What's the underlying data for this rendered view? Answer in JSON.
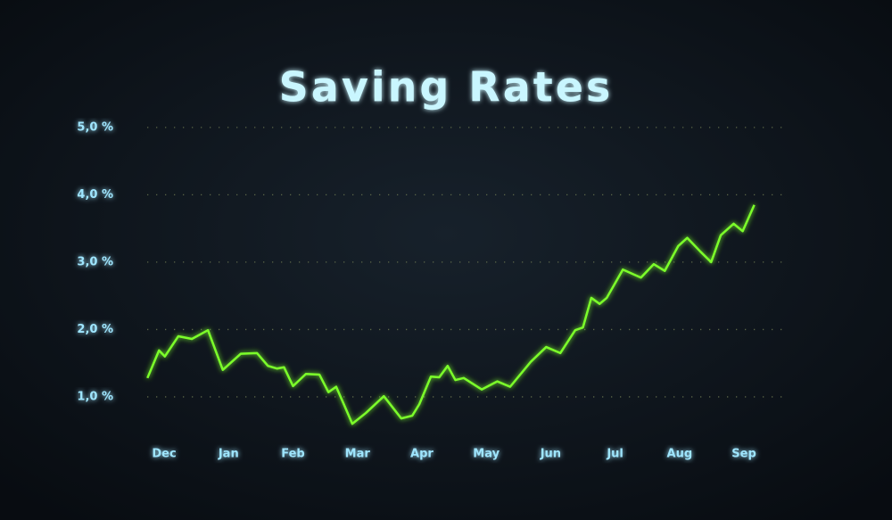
{
  "chart_data": {
    "type": "line",
    "title": "Saving Rates",
    "x": [
      -0.26,
      -0.08,
      0.01,
      0.22,
      0.43,
      0.68,
      0.91,
      1.19,
      1.44,
      1.61,
      1.75,
      1.86,
      2.0,
      2.2,
      2.41,
      2.55,
      2.67,
      2.78,
      2.92,
      3.13,
      3.41,
      3.68,
      3.85,
      3.96,
      4.14,
      4.27,
      4.4,
      4.52,
      4.65,
      4.93,
      5.17,
      5.37,
      5.69,
      5.93,
      6.15,
      6.38,
      6.5,
      6.63,
      6.76,
      6.87,
      7.12,
      7.4,
      7.6,
      7.77,
      7.98,
      8.12,
      8.32,
      8.49,
      8.64,
      8.84,
      8.98,
      9.16
    ],
    "series": [
      {
        "color": "#7cff2a",
        "values": [
          1.28,
          1.69,
          1.6,
          1.9,
          1.86,
          1.99,
          1.4,
          1.64,
          1.65,
          1.46,
          1.42,
          1.44,
          1.16,
          1.34,
          1.33,
          1.07,
          1.15,
          0.91,
          0.6,
          0.76,
          1.01,
          0.68,
          0.72,
          0.89,
          1.3,
          1.29,
          1.46,
          1.25,
          1.28,
          1.11,
          1.23,
          1.15,
          1.52,
          1.74,
          1.65,
          1.99,
          2.03,
          2.47,
          2.38,
          2.47,
          2.89,
          2.77,
          2.97,
          2.87,
          3.24,
          3.36,
          3.16,
          3.0,
          3.4,
          3.57,
          3.46,
          3.85
        ]
      }
    ],
    "xlim": [
      -0.61,
      9.47
    ],
    "xticks": [
      {
        "value": 0,
        "label": "Dec"
      },
      {
        "value": 1,
        "label": "Jan"
      },
      {
        "value": 2,
        "label": "Feb"
      },
      {
        "value": 3,
        "label": "Mar"
      },
      {
        "value": 4,
        "label": "Apr"
      },
      {
        "value": 5,
        "label": "May"
      },
      {
        "value": 6,
        "label": "Jun"
      },
      {
        "value": 7,
        "label": "Jul"
      },
      {
        "value": 8,
        "label": "Aug"
      },
      {
        "value": 9,
        "label": "Sep"
      }
    ],
    "ylim": [
      0.43,
      5.21
    ],
    "yticks": [
      {
        "value": 1,
        "label": "1,0 %"
      },
      {
        "value": 2,
        "label": "2,0 %"
      },
      {
        "value": 3,
        "label": "3,0 %"
      },
      {
        "value": 4,
        "label": "4,0 %"
      },
      {
        "value": 5,
        "label": "5,0 %"
      }
    ],
    "grid": true
  }
}
